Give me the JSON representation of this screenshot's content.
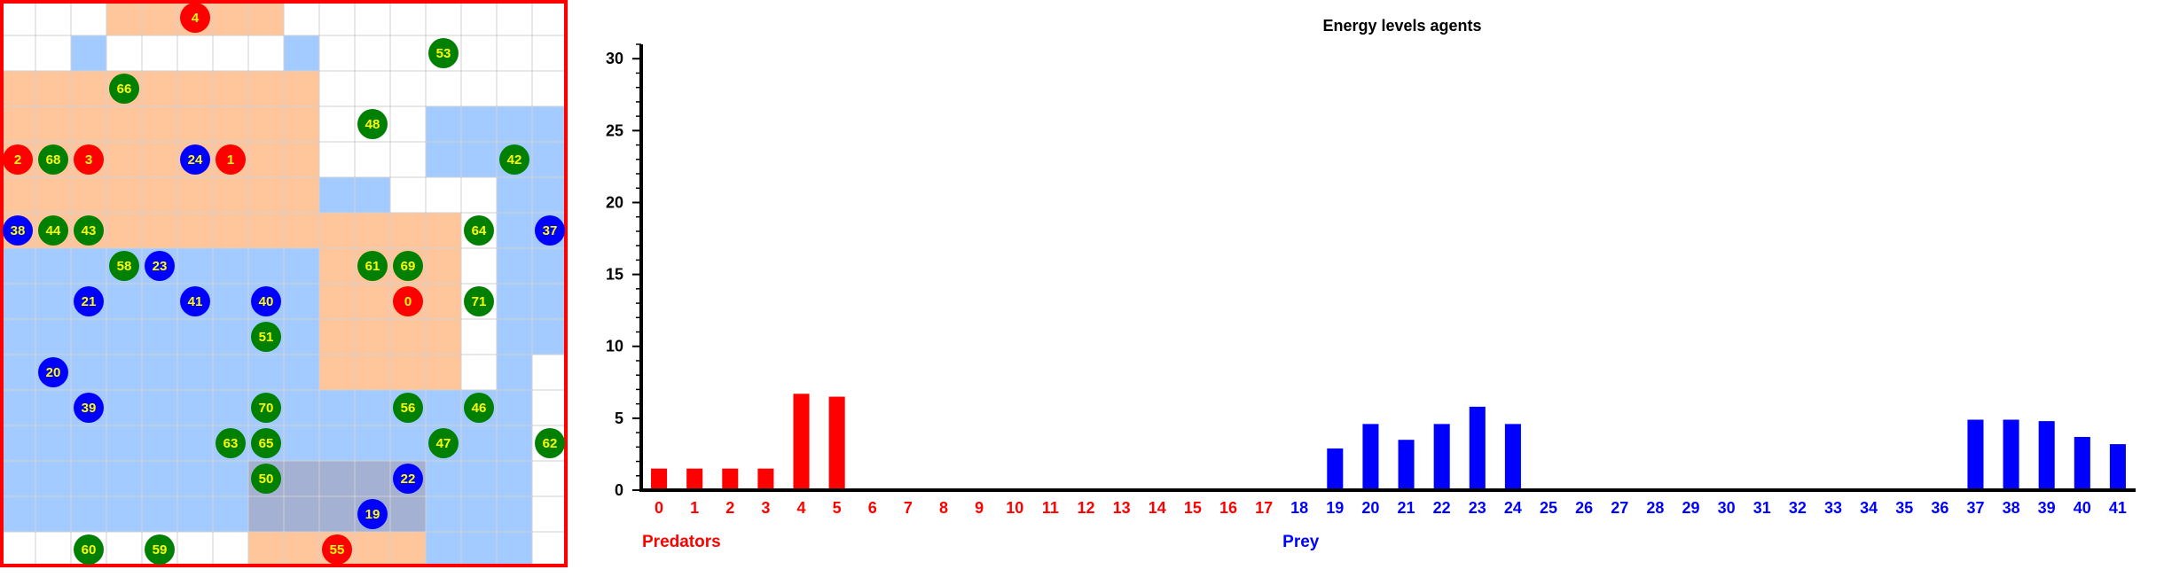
{
  "grid": {
    "cols": 16,
    "rows": 16,
    "border_color": "#ff0000",
    "colors": {
      "predator_territory": "#ffb37a",
      "prey_territory": "#5aa0ff",
      "predator": "#ff0000",
      "prey": "#0000ff",
      "plant": "#008000",
      "label": "#ffff00"
    },
    "agents": [
      {
        "id": "4",
        "kind": "predator",
        "col": 5,
        "row": 0
      },
      {
        "id": "53",
        "kind": "plant",
        "col": 12,
        "row": 1
      },
      {
        "id": "66",
        "kind": "plant",
        "col": 3,
        "row": 2
      },
      {
        "id": "48",
        "kind": "plant",
        "col": 10,
        "row": 3
      },
      {
        "id": "2",
        "kind": "predator",
        "col": 0,
        "row": 4
      },
      {
        "id": "68",
        "kind": "plant",
        "col": 1,
        "row": 4
      },
      {
        "id": "3",
        "kind": "predator",
        "col": 2,
        "row": 4
      },
      {
        "id": "24",
        "kind": "prey",
        "col": 5,
        "row": 4
      },
      {
        "id": "1",
        "kind": "predator",
        "col": 6,
        "row": 4
      },
      {
        "id": "42",
        "kind": "plant",
        "col": 14,
        "row": 4
      },
      {
        "id": "38",
        "kind": "prey",
        "col": 0,
        "row": 6
      },
      {
        "id": "44",
        "kind": "plant",
        "col": 1,
        "row": 6
      },
      {
        "id": "43",
        "kind": "plant",
        "col": 2,
        "row": 6
      },
      {
        "id": "64",
        "kind": "plant",
        "col": 13,
        "row": 6
      },
      {
        "id": "37",
        "kind": "prey",
        "col": 15,
        "row": 6
      },
      {
        "id": "58",
        "kind": "plant",
        "col": 3,
        "row": 7
      },
      {
        "id": "23",
        "kind": "prey",
        "col": 4,
        "row": 7
      },
      {
        "id": "61",
        "kind": "plant",
        "col": 10,
        "row": 7
      },
      {
        "id": "69",
        "kind": "plant",
        "col": 11,
        "row": 7
      },
      {
        "id": "21",
        "kind": "prey",
        "col": 2,
        "row": 8
      },
      {
        "id": "41",
        "kind": "prey",
        "col": 5,
        "row": 8
      },
      {
        "id": "40",
        "kind": "prey",
        "col": 7,
        "row": 8
      },
      {
        "id": "0",
        "kind": "predator",
        "col": 11,
        "row": 8
      },
      {
        "id": "71",
        "kind": "plant",
        "col": 13,
        "row": 8
      },
      {
        "id": "51",
        "kind": "plant",
        "col": 7,
        "row": 9
      },
      {
        "id": "20",
        "kind": "prey",
        "col": 1,
        "row": 10
      },
      {
        "id": "39",
        "kind": "prey",
        "col": 2,
        "row": 11
      },
      {
        "id": "70",
        "kind": "plant",
        "col": 7,
        "row": 11
      },
      {
        "id": "56",
        "kind": "plant",
        "col": 11,
        "row": 11
      },
      {
        "id": "46",
        "kind": "plant",
        "col": 13,
        "row": 11
      },
      {
        "id": "63",
        "kind": "plant",
        "col": 6,
        "row": 12
      },
      {
        "id": "65",
        "kind": "plant",
        "col": 7,
        "row": 12
      },
      {
        "id": "47",
        "kind": "plant",
        "col": 12,
        "row": 12
      },
      {
        "id": "62",
        "kind": "plant",
        "col": 15,
        "row": 12
      },
      {
        "id": "50",
        "kind": "plant",
        "col": 7,
        "row": 13
      },
      {
        "id": "22",
        "kind": "prey",
        "col": 11,
        "row": 13
      },
      {
        "id": "19",
        "kind": "prey",
        "col": 10,
        "row": 14
      },
      {
        "id": "60",
        "kind": "plant",
        "col": 2,
        "row": 15
      },
      {
        "id": "59",
        "kind": "plant",
        "col": 4,
        "row": 15
      },
      {
        "id": "55",
        "kind": "predator",
        "col": 9,
        "row": 15
      }
    ]
  },
  "chart_data": {
    "type": "bar",
    "title": "Energy levels agents",
    "xlabel": "",
    "ylabel": "",
    "ylim": [
      0,
      31
    ],
    "yticks": [
      0,
      5,
      10,
      15,
      20,
      25,
      30
    ],
    "grid": false,
    "categories": [
      "0",
      "1",
      "2",
      "3",
      "4",
      "5",
      "6",
      "7",
      "8",
      "9",
      "10",
      "11",
      "12",
      "13",
      "14",
      "15",
      "16",
      "17",
      "18",
      "19",
      "20",
      "21",
      "22",
      "23",
      "24",
      "25",
      "26",
      "27",
      "28",
      "29",
      "30",
      "31",
      "32",
      "33",
      "34",
      "35",
      "36",
      "37",
      "38",
      "39",
      "40",
      "41"
    ],
    "values": [
      1.5,
      1.5,
      1.5,
      1.5,
      6.7,
      6.5,
      0,
      0,
      0,
      0,
      0,
      0,
      0,
      0,
      0,
      0,
      0,
      0,
      0,
      2.9,
      4.6,
      3.5,
      4.6,
      5.8,
      4.6,
      0,
      0,
      0,
      0,
      0,
      0,
      0,
      0,
      0,
      0,
      0,
      0,
      4.9,
      4.9,
      4.8,
      3.7,
      3.2
    ],
    "groups": [
      {
        "label": "Predators",
        "from": 0,
        "to": 17,
        "color": "#ff0000"
      },
      {
        "label": "Prey",
        "from": 18,
        "to": 41,
        "color": "#0000ff"
      }
    ]
  }
}
